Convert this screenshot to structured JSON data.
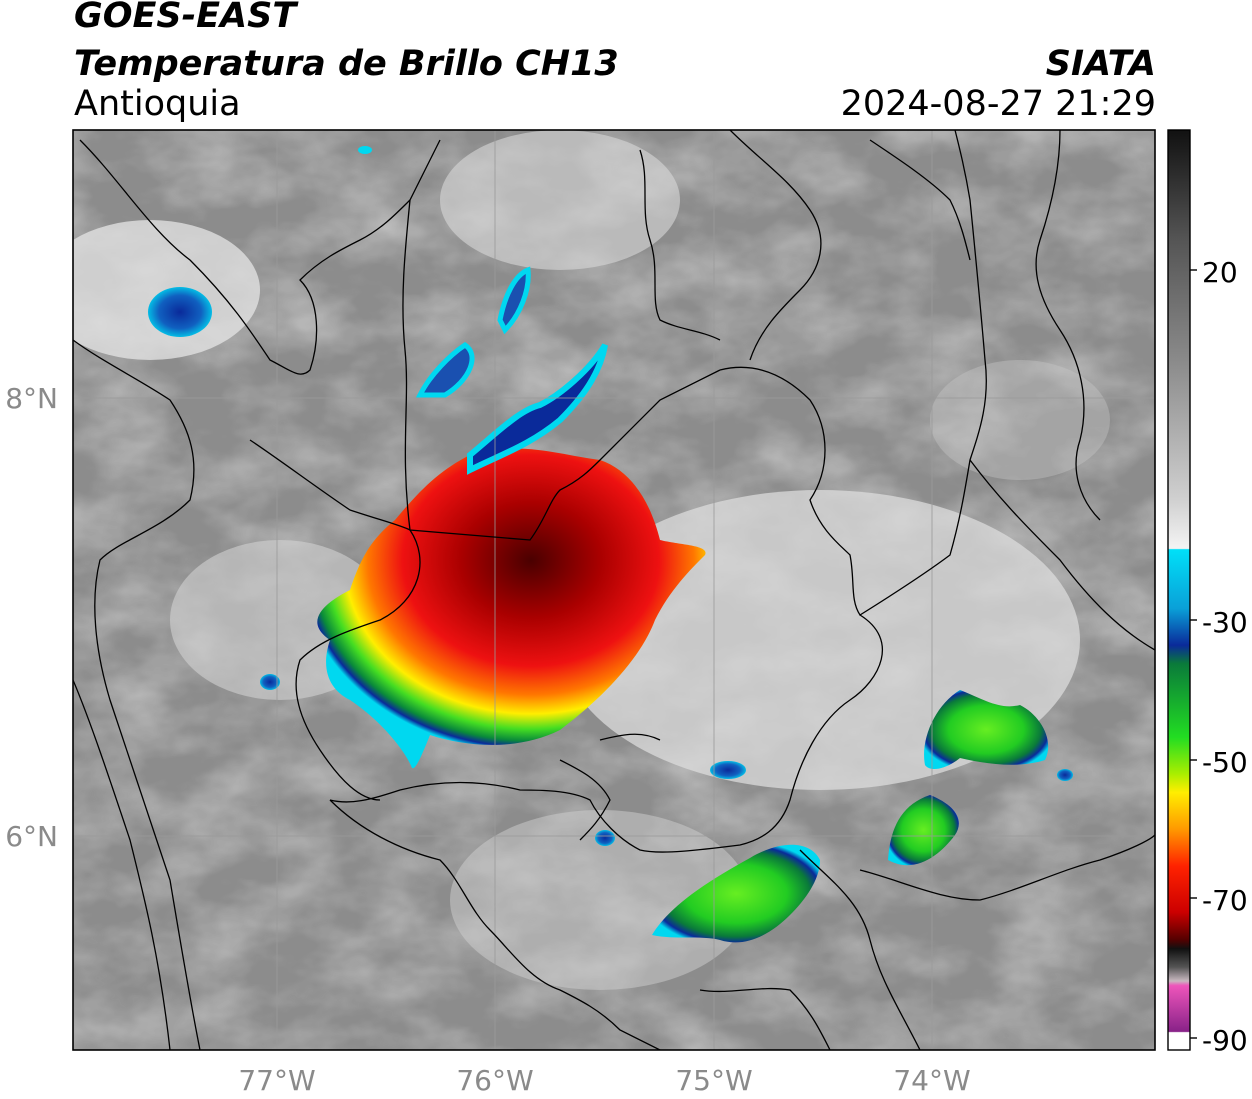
{
  "header": {
    "satellite": "GOES-EAST",
    "product": "Temperatura de Brillo CH13",
    "region": "Antioquia",
    "organization": "SIATA",
    "timestamp": "2024-08-27 21:29"
  },
  "map": {
    "lon_ticks": [
      "77°W",
      "76°W",
      "75°W",
      "74°W"
    ],
    "lat_ticks": [
      "8°N",
      "6°N"
    ],
    "extent": {
      "lon": [
        -77.95,
        -72.98
      ],
      "lat": [
        5.0,
        9.2
      ]
    },
    "gridlines": true,
    "colors": {
      "background_cloud": "#8c8c8c",
      "border": "#000000",
      "grid": "#9a9a9a"
    }
  },
  "colorbar": {
    "labels": [
      "20",
      "-30",
      "-50",
      "-70",
      "-90"
    ],
    "colors": {
      "warm_top": "#111111",
      "gray_mid": "#9a9a9a",
      "white": "#f2f2f2",
      "cyan": "#00e0f8",
      "blue": "#0a2a9a",
      "green": "#22dd22",
      "yellow": "#ffee00",
      "orange": "#ff8800",
      "red": "#ee1111",
      "dark_red": "#550000",
      "black": "#111111",
      "pink": "#ee55bb",
      "purple": "#882288"
    }
  }
}
